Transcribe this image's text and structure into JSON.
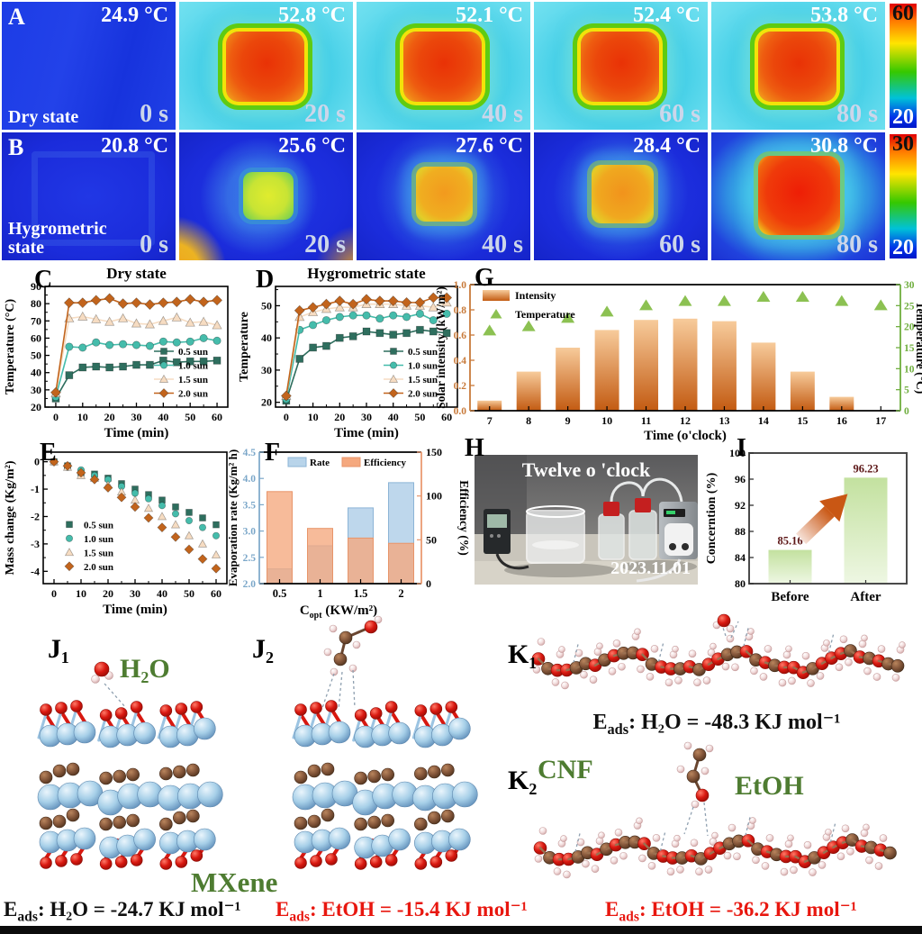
{
  "panel_labels": {
    "A": "A",
    "B": "B",
    "C": "C",
    "D": "D",
    "E": "E",
    "F": "F",
    "G": "G",
    "H": "H",
    "I": "I",
    "J1": "J₁",
    "J2": "J₂",
    "K1": "K₁",
    "K2": "K₂"
  },
  "thermal": {
    "rowA": {
      "state": "Dry state",
      "colorbar_top": "60",
      "colorbar_bottom": "20",
      "frames": [
        {
          "temp": "24.9 °C",
          "time": "0 s",
          "variant": "a-cool"
        },
        {
          "temp": "52.8 °C",
          "time": "20 s",
          "variant": "a-hot"
        },
        {
          "temp": "52.1 °C",
          "time": "40 s",
          "variant": "a-hot"
        },
        {
          "temp": "52.4 °C",
          "time": "60 s",
          "variant": "a-hot"
        },
        {
          "temp": "53.8 °C",
          "time": "80 s",
          "variant": "a-hot"
        }
      ]
    },
    "rowB": {
      "state": "Hygrometric state",
      "colorbar_top": "30",
      "colorbar_bottom": "20",
      "frames": [
        {
          "temp": "20.8 °C",
          "time": "0 s",
          "variant": "b-cool"
        },
        {
          "temp": "25.6 °C",
          "time": "20 s",
          "variant": "b-20"
        },
        {
          "temp": "27.6 °C",
          "time": "40 s",
          "variant": "b-40"
        },
        {
          "temp": "28.4 °C",
          "time": "60 s",
          "variant": "b-60"
        },
        {
          "temp": "30.8 °C",
          "time": "80 s",
          "variant": "b-80"
        }
      ]
    }
  },
  "chart_data": [
    {
      "id": "C",
      "type": "line",
      "title": "Dry state",
      "xlabel": "Time (min)",
      "ylabel": "Temperature (°C)",
      "xlim": [
        -4,
        64
      ],
      "ylim": [
        20,
        90
      ],
      "xticks": [
        0,
        10,
        20,
        30,
        40,
        50,
        60
      ],
      "yticks": [
        20,
        30,
        40,
        50,
        60,
        70,
        80,
        90
      ],
      "x": [
        0,
        5,
        10,
        15,
        20,
        25,
        30,
        35,
        40,
        45,
        50,
        55,
        60
      ],
      "series": [
        {
          "name": "0.5 sun",
          "marker": "square",
          "color": "#2e6e5e",
          "values": [
            25,
            38.5,
            43,
            43.5,
            43,
            43.5,
            44.5,
            44.5,
            47,
            46,
            46.5,
            46.5,
            47
          ]
        },
        {
          "name": "1.0 sun",
          "marker": "circle",
          "color": "#45bcab",
          "values": [
            26,
            55,
            54.5,
            57.5,
            56,
            56.5,
            56,
            55.5,
            58,
            57.5,
            58,
            60,
            58.5
          ]
        },
        {
          "name": "1.5 sun",
          "marker": "triangle",
          "color": "#f6dcc2",
          "values": [
            28,
            71.5,
            72.5,
            71,
            69.5,
            71.5,
            68.5,
            68,
            70,
            72,
            69,
            69.5,
            67.5
          ]
        },
        {
          "name": "2.0 sun",
          "marker": "diamond",
          "color": "#c2641c",
          "values": [
            28.5,
            80.5,
            80.5,
            82,
            83,
            80,
            80.5,
            79.5,
            80.5,
            81,
            82.5,
            81,
            82
          ]
        }
      ]
    },
    {
      "id": "D",
      "type": "line",
      "title": "Hygrometric state",
      "xlabel": "Time (min)",
      "ylabel": "Temperature",
      "xlim": [
        -4,
        64
      ],
      "ylim": [
        18.5,
        56
      ],
      "xticks": [
        0,
        10,
        20,
        30,
        40,
        50,
        60
      ],
      "yticks": [
        20,
        30,
        40,
        50
      ],
      "x": [
        0,
        5,
        10,
        15,
        20,
        25,
        30,
        35,
        40,
        45,
        50,
        55,
        60
      ],
      "series": [
        {
          "name": "0.5 sun",
          "marker": "square",
          "color": "#2e6e5e",
          "values": [
            20.5,
            33.5,
            37,
            37.5,
            40,
            40.5,
            42,
            41.5,
            41,
            41.5,
            42.5,
            42,
            41.5
          ]
        },
        {
          "name": "1.0 sun",
          "marker": "circle",
          "color": "#45bcab",
          "values": [
            21,
            42.5,
            44,
            45.5,
            46.5,
            47,
            47,
            46,
            47,
            46.5,
            47.5,
            45.5,
            47.5
          ]
        },
        {
          "name": "1.5 sun",
          "marker": "triangle",
          "color": "#f6dcc2",
          "values": [
            22,
            46.5,
            48,
            49,
            49.5,
            49.5,
            50.5,
            50.5,
            50.5,
            50,
            50,
            49.5,
            51
          ]
        },
        {
          "name": "2.0 sun",
          "marker": "diamond",
          "color": "#c2641c",
          "values": [
            22,
            48.5,
            49.5,
            50.5,
            51.5,
            50.5,
            52,
            51.5,
            51.5,
            51,
            51,
            52.5,
            52.5
          ]
        }
      ]
    },
    {
      "id": "G",
      "type": "bar-scatter",
      "xlabel": "Time (o'clock)",
      "ylabel_left": "Solar intensity (kW/m²)",
      "ylabel_right": "Temperature (°C)",
      "categories": [
        7,
        8,
        9,
        10,
        11,
        12,
        13,
        14,
        15,
        16,
        17
      ],
      "ylim_left": [
        0,
        1.0
      ],
      "yticks_left": [
        0.0,
        0.2,
        0.4,
        0.6,
        0.8,
        1.0
      ],
      "ylim_right": [
        0,
        30
      ],
      "yticks_right": [
        0,
        5,
        10,
        15,
        20,
        25,
        30
      ],
      "bar_gradient": [
        "#f7cb9b",
        "#c35b12"
      ],
      "triangle_color": "#8cc152",
      "series": [
        {
          "name": "Intensity",
          "type": "bar",
          "values": [
            0.08,
            0.31,
            0.5,
            0.64,
            0.72,
            0.73,
            0.71,
            0.54,
            0.31,
            0.11,
            0
          ]
        },
        {
          "name": "Temperature",
          "type": "triangle",
          "values": [
            19,
            20,
            22,
            23.5,
            25,
            26,
            26,
            27,
            27,
            26,
            25
          ]
        }
      ]
    },
    {
      "id": "E",
      "type": "scatter",
      "xlabel": "Time (min)",
      "ylabel": "Mass change (Kg/m²)",
      "xlim": [
        -4,
        64
      ],
      "ylim": [
        -4.45,
        0.35
      ],
      "xticks": [
        0,
        10,
        20,
        30,
        40,
        50,
        60
      ],
      "yticks": [
        0,
        -1,
        -2,
        -3,
        -4
      ],
      "x": [
        0,
        5,
        10,
        15,
        20,
        25,
        30,
        35,
        40,
        45,
        50,
        55,
        60
      ],
      "series": [
        {
          "name": "0.5 sun",
          "marker": "square",
          "color": "#2e6e5e",
          "values": [
            0,
            -0.15,
            -0.4,
            -0.45,
            -0.6,
            -0.8,
            -1.0,
            -1.2,
            -1.4,
            -1.65,
            -1.85,
            -2.05,
            -2.3
          ]
        },
        {
          "name": "1.0 sun",
          "marker": "circle",
          "color": "#45bcab",
          "values": [
            0,
            -0.2,
            -0.3,
            -0.5,
            -0.65,
            -0.9,
            -1.15,
            -1.35,
            -1.6,
            -1.9,
            -2.15,
            -2.4,
            -2.7
          ]
        },
        {
          "name": "1.5 sun",
          "marker": "triangle",
          "color": "#f6dcc2",
          "values": [
            0,
            -0.2,
            -0.5,
            -0.6,
            -0.85,
            -1.1,
            -1.4,
            -1.7,
            -2.0,
            -2.3,
            -2.7,
            -3.0,
            -3.4
          ]
        },
        {
          "name": "2.0 sun",
          "marker": "diamond",
          "color": "#c2641c",
          "values": [
            0,
            -0.15,
            -0.4,
            -0.65,
            -0.95,
            -1.3,
            -1.65,
            -2.05,
            -2.4,
            -2.75,
            -3.2,
            -3.55,
            -3.9
          ]
        }
      ]
    },
    {
      "id": "F",
      "type": "dual-bar",
      "xlabel_main": "C",
      "xlabel_sub": "opt",
      "xlabel_rest": " (KW/m²)",
      "ylabel_left": "Evaporation rate (Kg/m² h)",
      "ylabel_right": "Efficiency (%)",
      "categories": [
        "0.5",
        "1",
        "1.5",
        "2"
      ],
      "ylim_left": [
        2.0,
        4.5
      ],
      "yticks_left": [
        2.0,
        2.5,
        3.0,
        3.5,
        4.0,
        4.5
      ],
      "ylim_right": [
        0,
        150
      ],
      "yticks_right": [
        0,
        50,
        100,
        150
      ],
      "series": [
        {
          "name": "Rate",
          "color": "#b8d4ea",
          "edge": "#8cb4d6",
          "values": [
            2.28,
            2.72,
            3.44,
            3.92
          ]
        },
        {
          "name": "Efficiency",
          "color": "#f5a87e",
          "edge": "#e8956a",
          "values": [
            105,
            63,
            52,
            46
          ]
        }
      ]
    },
    {
      "id": "I",
      "type": "bar",
      "ylabel": "Concerntion (%)",
      "categories": [
        "Before",
        "After"
      ],
      "values": [
        85.16,
        96.23
      ],
      "value_labels": [
        "85.16",
        "96.23"
      ],
      "ylim": [
        80,
        100
      ],
      "yticks": [
        80,
        84,
        88,
        92,
        96,
        100
      ],
      "bar_gradient": [
        "#c3e19f",
        "#eef7e3"
      ],
      "label_color": "#5c1616",
      "arrow_gradient": [
        "#f6e0d6",
        "#c95714"
      ]
    }
  ],
  "photo": {
    "title": "Twelve o 'clock",
    "date": "2023.11.01"
  },
  "molecular": {
    "h2o_label": "H₂O",
    "mxene_label": "MXene",
    "cnf_label": "CNF",
    "etoh_label": "EtOH",
    "atom_colors": {
      "O": "#d81810",
      "Ti": "#a6cfe8",
      "C": "#84563a",
      "H": "#f2dcdc"
    },
    "captions": {
      "mxene_h2o": {
        "prefix": "E",
        "sub": "ads",
        "body": ": H₂O = -24.7 KJ mol⁻¹",
        "color": "#101010"
      },
      "mxene_etoh": {
        "prefix": "E",
        "sub": "ads",
        "body": ": EtOH = -15.4 KJ mol⁻¹",
        "color": "#e8170f"
      },
      "cnf_h2o": {
        "prefix": "E",
        "sub": "ads",
        "body": ": H₂O = -48.3 KJ mol⁻¹",
        "color": "#101010"
      },
      "cnf_etoh": {
        "prefix": "E",
        "sub": "ads",
        "body": ": EtOH = -36.2 KJ mol⁻¹",
        "color": "#e8170f"
      }
    }
  }
}
